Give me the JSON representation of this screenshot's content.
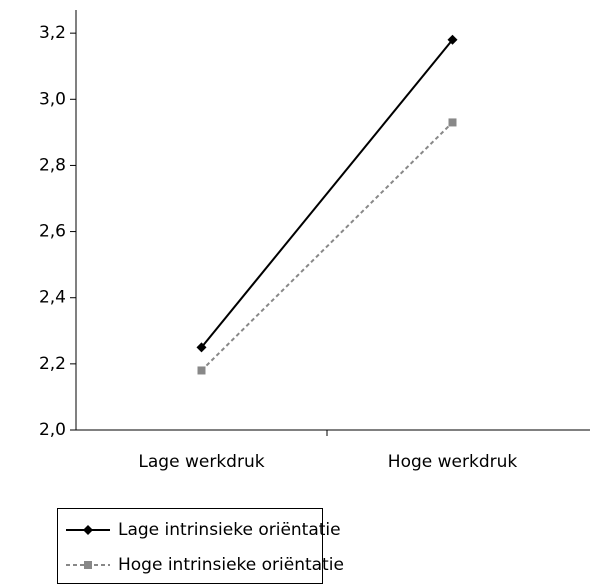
{
  "chart_data": {
    "type": "line",
    "categories": [
      "Lage werkdruk",
      "Hoge werkdruk"
    ],
    "series": [
      {
        "name": "Lage intrinsieke oriëntatie",
        "color": "#000000",
        "values": [
          2.25,
          3.18
        ]
      },
      {
        "name": "Hoge intrinsieke oriëntatie",
        "color": "#888888",
        "values": [
          2.18,
          2.93
        ]
      }
    ],
    "ylim": [
      2.0,
      3.27
    ],
    "yticks": [
      {
        "value": 2.0,
        "label": "2,0"
      },
      {
        "value": 2.2,
        "label": "2,2"
      },
      {
        "value": 2.4,
        "label": "2,4"
      },
      {
        "value": 2.6,
        "label": "2,6"
      },
      {
        "value": 2.8,
        "label": "2,8"
      },
      {
        "value": 3.0,
        "label": "3,0"
      },
      {
        "value": 3.2,
        "label": "3,2"
      }
    ],
    "legend": "bottom-left"
  }
}
